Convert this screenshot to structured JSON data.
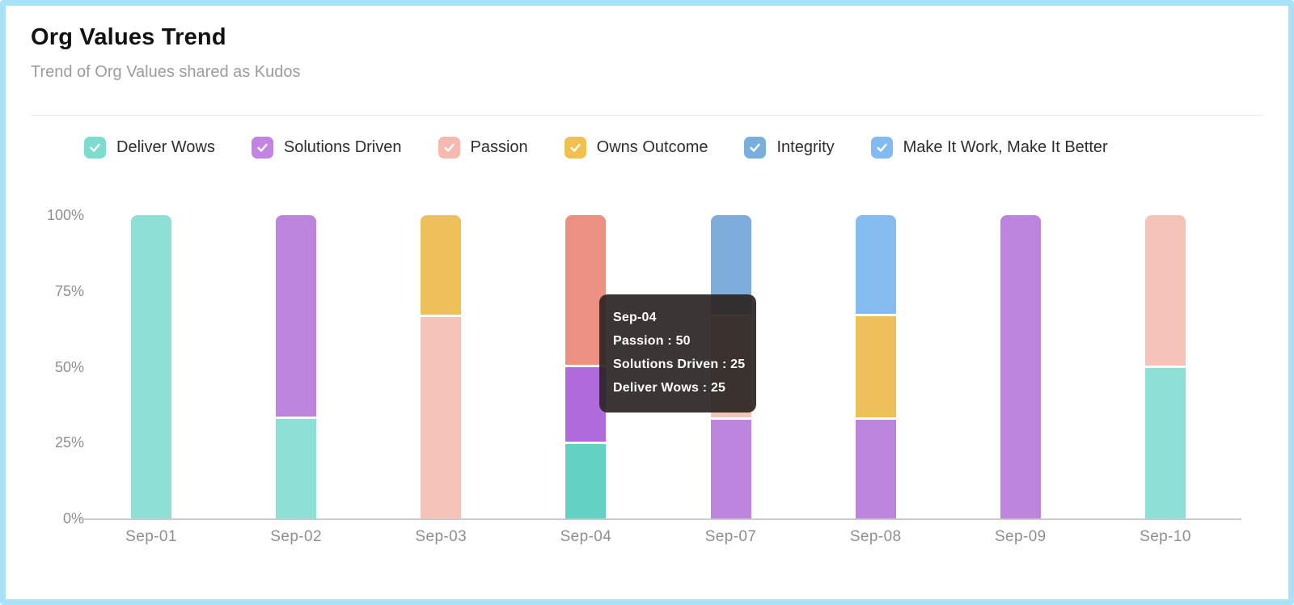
{
  "header": {
    "title": "Org Values Trend",
    "subtitle": "Trend of Org Values shared as Kudos"
  },
  "legend": [
    {
      "label": "Deliver Wows",
      "color": "#7edccf"
    },
    {
      "label": "Solutions Driven",
      "color": "#c383e3"
    },
    {
      "label": "Passion",
      "color": "#f5b9b0"
    },
    {
      "label": "Owns Outcome",
      "color": "#f2c04e"
    },
    {
      "label": "Integrity",
      "color": "#7aaedd"
    },
    {
      "label": "Make It Work, Make It Better",
      "color": "#82baf2"
    }
  ],
  "chart_data": {
    "type": "bar",
    "stacked": true,
    "units": "percent",
    "title": "Org Values Trend",
    "categories": [
      "Sep-01",
      "Sep-02",
      "Sep-03",
      "Sep-04",
      "Sep-07",
      "Sep-08",
      "Sep-09",
      "Sep-10"
    ],
    "y_ticks": [
      "100%",
      "75%",
      "50%",
      "25%",
      "0%"
    ],
    "ylim": [
      0,
      100
    ],
    "grid": false,
    "legend_position": "top",
    "series": [
      {
        "name": "Deliver Wows",
        "values": [
          100,
          33,
          0,
          25,
          0,
          0,
          0,
          50
        ]
      },
      {
        "name": "Solutions Driven",
        "values": [
          0,
          67,
          0,
          25,
          33,
          33,
          100,
          0
        ]
      },
      {
        "name": "Passion",
        "values": [
          0,
          0,
          67,
          50,
          34,
          0,
          0,
          50
        ]
      },
      {
        "name": "Owns Outcome",
        "values": [
          0,
          0,
          33,
          0,
          0,
          34,
          0,
          0
        ]
      },
      {
        "name": "Integrity",
        "values": [
          0,
          0,
          0,
          0,
          33,
          0,
          0,
          0
        ]
      },
      {
        "name": "Make It Work, Make It Better",
        "values": [
          0,
          0,
          0,
          0,
          0,
          33,
          0,
          0
        ]
      }
    ]
  },
  "bars": [
    {
      "label": "Sep-01",
      "segments": [
        {
          "name": "Deliver Wows",
          "pct": 100,
          "color": "#8ce0d5"
        }
      ]
    },
    {
      "label": "Sep-02",
      "segments": [
        {
          "name": "Deliver Wows",
          "pct": 33,
          "color": "#8ce0d5"
        },
        {
          "name": "Solutions Driven",
          "pct": 67,
          "color": "#bc84dc"
        }
      ]
    },
    {
      "label": "Sep-03",
      "segments": [
        {
          "name": "Passion",
          "pct": 67,
          "color": "#f5c3ba"
        },
        {
          "name": "Owns Outcome",
          "pct": 33,
          "color": "#eec05a"
        }
      ]
    },
    {
      "label": "Sep-04",
      "segments": [
        {
          "name": "Deliver Wows",
          "pct": 25,
          "color": "#63d1c3"
        },
        {
          "name": "Solutions Driven",
          "pct": 25,
          "color": "#af6adc"
        },
        {
          "name": "Passion",
          "pct": 50,
          "color": "#ec9181"
        }
      ]
    },
    {
      "label": "Sep-07",
      "segments": [
        {
          "name": "Solutions Driven",
          "pct": 33,
          "color": "#bc84dc"
        },
        {
          "name": "Passion",
          "pct": 34,
          "color": "#f5c3ba"
        },
        {
          "name": "Integrity",
          "pct": 33,
          "color": "#7faddb"
        }
      ]
    },
    {
      "label": "Sep-08",
      "segments": [
        {
          "name": "Solutions Driven",
          "pct": 33,
          "color": "#bc84dc"
        },
        {
          "name": "Owns Outcome",
          "pct": 34,
          "color": "#eec05a"
        },
        {
          "name": "Make It Work, Make It Better",
          "pct": 33,
          "color": "#85bcef"
        }
      ]
    },
    {
      "label": "Sep-09",
      "segments": [
        {
          "name": "Solutions Driven",
          "pct": 100,
          "color": "#bc84dc"
        }
      ]
    },
    {
      "label": "Sep-10",
      "segments": [
        {
          "name": "Deliver Wows",
          "pct": 50,
          "color": "#8ce0d5"
        },
        {
          "name": "Passion",
          "pct": 50,
          "color": "#f5c3ba"
        }
      ]
    }
  ],
  "tooltip": {
    "title": "Sep-04",
    "lines": [
      "Passion : 50",
      "Solutions Driven : 25",
      "Deliver Wows : 25"
    ]
  },
  "colors": {
    "frame_border": "#a7e3f7",
    "axis_line": "#cbcbcb",
    "tick_text": "#8f8f8f",
    "tooltip_bg": "#2c2624"
  }
}
